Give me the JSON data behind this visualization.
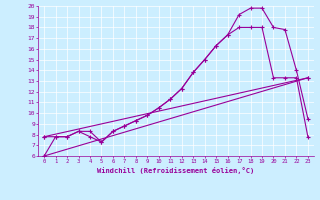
{
  "xlabel": "Windchill (Refroidissement éolien,°C)",
  "bg_color": "#cceeff",
  "line_color": "#990099",
  "xlim": [
    -0.5,
    23.5
  ],
  "ylim": [
    6,
    20
  ],
  "xticks": [
    0,
    1,
    2,
    3,
    4,
    5,
    6,
    7,
    8,
    9,
    10,
    11,
    12,
    13,
    14,
    15,
    16,
    17,
    18,
    19,
    20,
    21,
    22,
    23
  ],
  "yticks": [
    6,
    7,
    8,
    9,
    10,
    11,
    12,
    13,
    14,
    15,
    16,
    17,
    18,
    19,
    20
  ],
  "line1_x": [
    0,
    1,
    2,
    3,
    4,
    5,
    6,
    7,
    8,
    9,
    10,
    11,
    12,
    13,
    14,
    15,
    16,
    17,
    18,
    19,
    20,
    21,
    22,
    23
  ],
  "line1_y": [
    6.0,
    7.8,
    7.8,
    8.3,
    7.8,
    7.3,
    8.3,
    8.8,
    9.3,
    9.8,
    10.5,
    11.3,
    12.3,
    13.8,
    15.0,
    16.3,
    17.3,
    19.2,
    19.8,
    19.8,
    18.0,
    17.8,
    14.0,
    9.5
  ],
  "line2_x": [
    0,
    1,
    2,
    3,
    4,
    5,
    6,
    7,
    8,
    9,
    10,
    11,
    12,
    13,
    14,
    15,
    16,
    17,
    18,
    19,
    20,
    21,
    22,
    23
  ],
  "line2_y": [
    7.8,
    7.8,
    7.8,
    8.3,
    8.3,
    7.3,
    8.3,
    8.8,
    9.3,
    9.8,
    10.5,
    11.3,
    12.3,
    13.8,
    15.0,
    16.3,
    17.3,
    18.0,
    18.0,
    18.0,
    13.3,
    13.3,
    13.3,
    7.8
  ],
  "line3_x": [
    0,
    23
  ],
  "line3_y": [
    6.0,
    13.3
  ],
  "line4_x": [
    0,
    23
  ],
  "line4_y": [
    7.8,
    13.3
  ]
}
